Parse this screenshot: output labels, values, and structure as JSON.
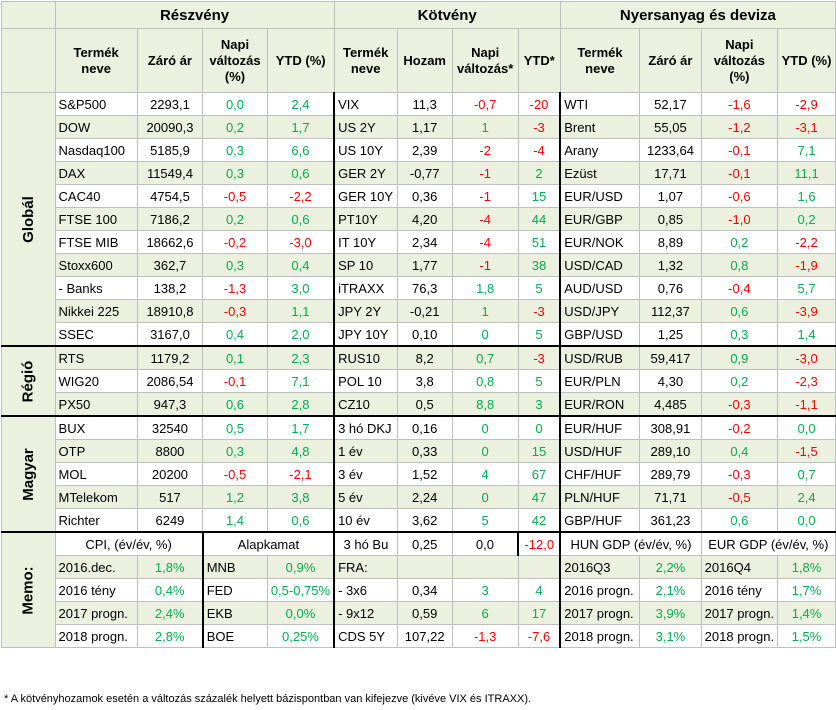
{
  "sections": {
    "equity": "Részvény",
    "bond": "Kötvény",
    "commodity": "Nyersanyag és deviza"
  },
  "col_headers": {
    "eq": [
      "Termék neve",
      "Záró ár",
      "Napi változás (%)",
      "YTD (%)"
    ],
    "bd": [
      "Termék neve",
      "Hozam",
      "Napi változás*",
      "YTD*"
    ],
    "cm": [
      "Termék neve",
      "Záró ár",
      "Napi változás (%)",
      "YTD (%)"
    ]
  },
  "groups": [
    {
      "label": "Globál",
      "rows": [
        [
          [
            "S&P500",
            "2293,1",
            "0,0",
            "2,4"
          ],
          [
            "VIX",
            "11,3",
            "-0,7",
            "-20"
          ],
          [
            "WTI",
            "52,17",
            "-1,6",
            "-2,9"
          ]
        ],
        [
          [
            "DOW",
            "20090,3",
            "0,2",
            "1,7"
          ],
          [
            "US 2Y",
            "1,17",
            "1",
            "-3"
          ],
          [
            "Brent",
            "55,05",
            "-1,2",
            "-3,1"
          ]
        ],
        [
          [
            "Nasdaq100",
            "5185,9",
            "0,3",
            "6,6"
          ],
          [
            "US 10Y",
            "2,39",
            "-2",
            "-4"
          ],
          [
            "Arany",
            "1233,64",
            "-0,1",
            "7,1"
          ]
        ],
        [
          [
            "DAX",
            "11549,4",
            "0,3",
            "0,6"
          ],
          [
            "GER 2Y",
            "-0,77",
            "-1",
            "2"
          ],
          [
            "Ezüst",
            "17,71",
            "-0,1",
            "11,1"
          ]
        ],
        [
          [
            "CAC40",
            "4754,5",
            "-0,5",
            "-2,2"
          ],
          [
            "GER 10Y",
            "0,36",
            "-1",
            "15"
          ],
          [
            "EUR/USD",
            "1,07",
            "-0,6",
            "1,6"
          ]
        ],
        [
          [
            "FTSE 100",
            "7186,2",
            "0,2",
            "0,6"
          ],
          [
            "PT10Y",
            "4,20",
            "-4",
            "44"
          ],
          [
            "EUR/GBP",
            "0,85",
            "-1,0",
            "0,2"
          ]
        ],
        [
          [
            "FTSE MIB",
            "18662,6",
            "-0,2",
            "-3,0"
          ],
          [
            "IT 10Y",
            "2,34",
            "-4",
            "51"
          ],
          [
            "EUR/NOK",
            "8,89",
            "0,2",
            "-2,2"
          ]
        ],
        [
          [
            "Stoxx600",
            "362,7",
            "0,3",
            "0,4"
          ],
          [
            "SP 10",
            "1,77",
            "-1",
            "38"
          ],
          [
            "USD/CAD",
            "1,32",
            "0,8",
            "-1,9"
          ]
        ],
        [
          [
            " - Banks",
            "138,2",
            "-1,3",
            "3,0"
          ],
          [
            "iTRAXX",
            "76,3",
            "1,8",
            "5"
          ],
          [
            "AUD/USD",
            "0,76",
            "-0,4",
            "5,7"
          ]
        ],
        [
          [
            "Nikkei 225",
            "18910,8",
            "-0,3",
            "1,1"
          ],
          [
            "JPY 2Y",
            "-0,21",
            "1",
            "-3"
          ],
          [
            "USD/JPY",
            "112,37",
            "0,6",
            "-3,9"
          ]
        ],
        [
          [
            "SSEC",
            "3167,0",
            "0,4",
            "2,0"
          ],
          [
            "JPY 10Y",
            "0,10",
            "0",
            "5"
          ],
          [
            "GBP/USD",
            "1,25",
            "0,3",
            "1,4"
          ]
        ]
      ]
    },
    {
      "label": "Régió",
      "rows": [
        [
          [
            "RTS",
            "1179,2",
            "0,1",
            "2,3"
          ],
          [
            "RUS10",
            "8,2",
            "0,7",
            "-3"
          ],
          [
            "USD/RUB",
            "59,417",
            "0,9",
            "-3,0"
          ]
        ],
        [
          [
            "WIG20",
            "2086,54",
            "-0,1",
            "7,1"
          ],
          [
            "POL 10",
            "3,8",
            "0,8",
            "5"
          ],
          [
            "EUR/PLN",
            "4,30",
            "0,2",
            "-2,3"
          ]
        ],
        [
          [
            "PX50",
            "947,3",
            "0,6",
            "2,8"
          ],
          [
            "CZ10",
            "0,5",
            "8,8",
            "3"
          ],
          [
            "EUR/RON",
            "4,485",
            "-0,3",
            "-1,1"
          ]
        ]
      ]
    },
    {
      "label": "Magyar",
      "rows": [
        [
          [
            "BUX",
            "32540",
            "0,5",
            "1,7"
          ],
          [
            "3 hó DKJ",
            "0,16",
            "0",
            "0"
          ],
          [
            "EUR/HUF",
            "308,91",
            "-0,2",
            "0,0"
          ]
        ],
        [
          [
            "OTP",
            "8800",
            "0,3",
            "4,8"
          ],
          [
            "1 év",
            "0,33",
            "0",
            "15"
          ],
          [
            "USD/HUF",
            "289,10",
            "0,4",
            "-1,5"
          ]
        ],
        [
          [
            "MOL",
            "20200",
            "-0,5",
            "-2,1"
          ],
          [
            "3 év",
            "1,52",
            "4",
            "67"
          ],
          [
            "CHF/HUF",
            "289,79",
            "-0,3",
            "0,7"
          ]
        ],
        [
          [
            "MTelekom",
            "517",
            "1,2",
            "3,8"
          ],
          [
            "5 év",
            "2,24",
            "0",
            "47"
          ],
          [
            "PLN/HUF",
            "71,71",
            "-0,5",
            "2,4"
          ]
        ],
        [
          [
            "Richter",
            "6249",
            "1,4",
            "0,6"
          ],
          [
            "10 év",
            "3,62",
            "5",
            "42"
          ],
          [
            "GBP/HUF",
            "361,23",
            "0,6",
            "0,0"
          ]
        ]
      ]
    }
  ],
  "memo": {
    "label": "Memo:",
    "header": [
      "CPI, (év/év, %)",
      "Alapkamat",
      "3 hó Bu",
      "0,25",
      "0,0",
      "-12,0",
      "HUN GDP (év/év, %)",
      "EUR GDP (év/év, %)"
    ],
    "rows": [
      [
        "2016.dec.",
        "1,8%",
        "MNB",
        "0,9%",
        "FRA:",
        "",
        "",
        "",
        "2016Q3",
        "2,2%",
        "2016Q4",
        "1,8%"
      ],
      [
        "2016 tény",
        "0,4%",
        "FED",
        "0,5-0,75%",
        " - 3x6",
        "0,34",
        "3",
        "4",
        "2016 progn.",
        "2,1%",
        "2016 tény",
        "1,7%"
      ],
      [
        "2017 progn.",
        "2,4%",
        "EKB",
        "0,0%",
        " - 9x12",
        "0,59",
        "6",
        "17",
        "2017 progn.",
        "3,9%",
        "2017 progn.",
        "1,4%"
      ],
      [
        "2018 progn.",
        "2,8%",
        "BOE",
        "0,25%",
        "CDS 5Y",
        "107,22",
        "-1,3",
        "-7,6",
        "2018 progn.",
        "3,1%",
        "2018 progn.",
        "1,5%"
      ]
    ]
  },
  "footnote": "* A kötvényhozamok esetén a változás százalék helyett bázispontban van kifejezve (kivéve VIX és ITRAXX).",
  "colors": {
    "positive": "#00b050",
    "negative": "#ff0000",
    "header_bg": "#ebf1de"
  }
}
